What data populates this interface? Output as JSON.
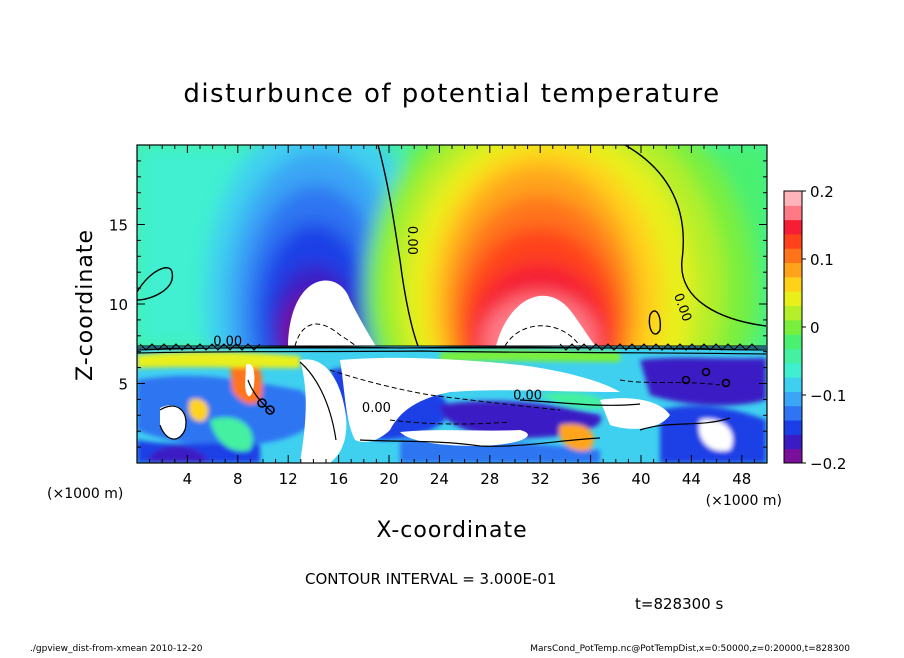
{
  "chart_data": {
    "type": "heatmap",
    "title": "disturbunce of potential temperature",
    "xlabel": "X-coordinate",
    "ylabel": "Z-coordinate",
    "x_unit": "(×1000 m)",
    "y_unit": "(×1000 m)",
    "xlim": [
      0,
      50
    ],
    "ylim": [
      0,
      20
    ],
    "x_ticks": [
      4,
      8,
      12,
      16,
      20,
      24,
      28,
      32,
      36,
      40,
      44,
      48
    ],
    "y_ticks": [
      5,
      10,
      15
    ],
    "colorbar": {
      "range": [
        -0.2,
        0.2
      ],
      "ticks": [
        {
          "value": 0.2,
          "label": "0.2"
        },
        {
          "value": 0.1,
          "label": "0.1"
        },
        {
          "value": 0,
          "label": "0"
        },
        {
          "value": -0.1,
          "label": "−0.1"
        },
        {
          "value": -0.2,
          "label": "−0.2"
        }
      ],
      "colors": [
        "#7a0f9a",
        "#3a1bc4",
        "#1a3fe6",
        "#2f74f2",
        "#3aa6f5",
        "#3fd0f0",
        "#3ff0d0",
        "#45f0a0",
        "#4af070",
        "#78ef3c",
        "#b4ef2a",
        "#e8ef1a",
        "#ffd21a",
        "#ffa41a",
        "#ff741a",
        "#ff421a",
        "#f51e34",
        "#ff7a86",
        "#ffb4bc"
      ]
    },
    "contour_labels": [
      {
        "x": 21.5,
        "z": 14,
        "text": "0.00"
      },
      {
        "x": 7.2,
        "z": 7.4,
        "text": "0.00"
      },
      {
        "x": 19.0,
        "z": 3.2,
        "text": "0.00"
      },
      {
        "x": 31.0,
        "z": 4.0,
        "text": "0.00"
      },
      {
        "x": 43.0,
        "z": 9.7,
        "text": "0.00"
      }
    ],
    "contour_interval": "CONTOUR INTERVAL = 3.000E-01",
    "time_label": "t=828300 s"
  },
  "footer": {
    "left": "./gpview_dist-from-xmean  2010-12-20",
    "right": "MarsCond_PotTemp.nc@PotTempDist,x=0:50000,z=0:20000,t=828300"
  }
}
